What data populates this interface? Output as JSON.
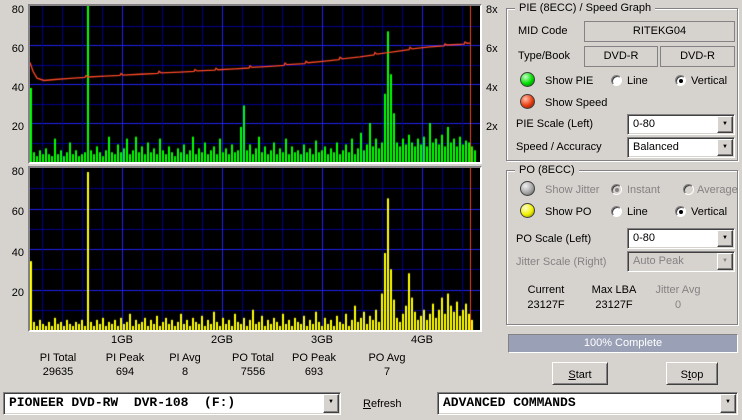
{
  "icons": {
    "dropdown_arrow": "▼"
  },
  "chart_data": [
    {
      "name": "pie_speed_graph",
      "title": "PIE (8ECC) / Speed Graph",
      "type": "bar",
      "ylim": [
        0,
        80
      ],
      "left_ticks": [
        "80",
        "60",
        "40",
        "20"
      ],
      "right_ticks": [
        "8x",
        "6x",
        "4x",
        "2x"
      ],
      "right_axis_range": [
        2,
        8
      ],
      "bar_color": "#00ff00",
      "grid": {
        "bg": "#000000",
        "minor": "#00008f",
        "major": "#2222ee"
      },
      "bars": [
        38,
        5,
        3,
        6,
        4,
        7,
        4,
        3,
        12,
        4,
        6,
        3,
        5,
        10,
        4,
        6,
        3,
        4,
        5,
        80,
        6,
        4,
        8,
        5,
        3,
        6,
        13,
        5,
        4,
        9,
        5,
        7,
        12,
        4,
        6,
        13,
        5,
        8,
        4,
        10,
        5,
        7,
        4,
        12,
        6,
        4,
        8,
        5,
        3,
        7,
        5,
        9,
        4,
        6,
        13,
        4,
        7,
        5,
        10,
        4,
        6,
        8,
        4,
        12,
        5,
        7,
        4,
        9,
        5,
        6,
        18,
        29,
        6,
        9,
        4,
        7,
        13,
        5,
        8,
        4,
        6,
        10,
        4,
        7,
        5,
        12,
        4,
        8,
        5,
        6,
        4,
        9,
        5,
        7,
        4,
        11,
        5,
        6,
        8,
        4,
        7,
        5,
        10,
        4,
        6,
        9,
        5,
        12,
        4,
        7,
        15,
        6,
        9,
        20,
        8,
        12,
        7,
        10,
        35,
        67,
        45,
        25,
        10,
        8,
        12,
        9,
        14,
        10,
        8,
        12,
        9,
        13,
        8,
        20,
        10,
        12,
        9,
        14,
        8,
        18,
        10,
        12,
        8,
        13,
        9,
        11,
        10,
        8,
        6,
        0
      ],
      "speed_line": {
        "color": "#ff4a28",
        "points": [
          [
            0,
            51
          ],
          [
            3,
            46.5
          ],
          [
            7,
            43
          ],
          [
            14,
            41.8
          ],
          [
            25,
            42.3
          ],
          [
            40,
            42.9
          ],
          [
            55,
            43.4
          ],
          [
            56,
            44.4
          ],
          [
            58,
            43.6
          ],
          [
            75,
            44
          ],
          [
            90,
            44.4
          ],
          [
            91,
            45.4
          ],
          [
            93,
            44.6
          ],
          [
            110,
            45
          ],
          [
            128,
            45.5
          ],
          [
            129,
            46.5
          ],
          [
            131,
            45.7
          ],
          [
            150,
            46.1
          ],
          [
            164,
            46.5
          ],
          [
            165,
            47.5
          ],
          [
            167,
            46.7
          ],
          [
            185,
            47.1
          ],
          [
            186,
            48.1
          ],
          [
            188,
            47.3
          ],
          [
            205,
            47.8
          ],
          [
            219,
            48.2
          ],
          [
            220,
            49.3
          ],
          [
            222,
            48.5
          ],
          [
            240,
            49
          ],
          [
            254,
            49.5
          ],
          [
            255,
            50.7
          ],
          [
            257,
            49.9
          ],
          [
            275,
            50.5
          ],
          [
            276,
            51.7
          ],
          [
            278,
            50.9
          ],
          [
            295,
            51.7
          ],
          [
            309,
            52.5
          ],
          [
            310,
            53.7
          ],
          [
            312,
            52.9
          ],
          [
            330,
            53.9
          ],
          [
            344,
            54.9
          ],
          [
            345,
            56.1
          ],
          [
            347,
            55.3
          ],
          [
            365,
            56.6
          ],
          [
            379,
            57.6
          ],
          [
            380,
            58.8
          ],
          [
            382,
            58
          ],
          [
            400,
            59
          ],
          [
            414,
            59.6
          ],
          [
            415,
            60.6
          ],
          [
            417,
            60
          ],
          [
            434,
            60.4
          ],
          [
            435,
            61.6
          ],
          [
            437,
            60.9
          ],
          [
            440,
            61
          ]
        ]
      },
      "cursor": {
        "x": 440,
        "color": "#e64a19"
      }
    },
    {
      "name": "po_graph",
      "title": "PO (8ECC)",
      "type": "bar",
      "ylim": [
        0,
        80
      ],
      "left_ticks": [
        "80",
        "60",
        "40",
        "20"
      ],
      "x_ticks": [
        "1GB",
        "2GB",
        "3GB",
        "4GB"
      ],
      "bar_color": "#ffff00",
      "grid": {
        "bg": "#000000",
        "minor": "#00008f",
        "major": "#2222ee"
      },
      "bars": [
        34,
        4,
        2,
        5,
        3,
        2,
        4,
        2,
        6,
        3,
        4,
        2,
        5,
        3,
        2,
        4,
        3,
        5,
        2,
        78,
        4,
        2,
        5,
        3,
        6,
        2,
        4,
        3,
        5,
        2,
        6,
        3,
        4,
        8,
        2,
        5,
        3,
        4,
        6,
        2,
        5,
        3,
        7,
        2,
        4,
        6,
        3,
        5,
        2,
        4,
        8,
        3,
        5,
        2,
        6,
        4,
        3,
        7,
        2,
        5,
        3,
        9,
        4,
        2,
        6,
        3,
        5,
        2,
        8,
        4,
        3,
        6,
        2,
        5,
        10,
        3,
        4,
        7,
        2,
        5,
        3,
        6,
        4,
        2,
        8,
        3,
        5,
        2,
        6,
        4,
        3,
        7,
        2,
        5,
        3,
        9,
        4,
        2,
        6,
        3,
        5,
        2,
        7,
        4,
        3,
        8,
        2,
        5,
        12,
        4,
        6,
        9,
        3,
        7,
        5,
        10,
        4,
        18,
        38,
        65,
        30,
        15,
        6,
        4,
        8,
        12,
        28,
        16,
        9,
        5,
        7,
        10,
        5,
        8,
        13,
        6,
        10,
        16,
        8,
        18,
        12,
        9,
        14,
        7,
        10,
        13,
        8,
        5,
        0,
        0
      ],
      "cursor": {
        "x": 440,
        "color": "#e64a19"
      }
    }
  ],
  "stats": {
    "items": [
      {
        "label": "PI Total",
        "value": "29635"
      },
      {
        "label": "PI Peak",
        "value": "694"
      },
      {
        "label": "PI Avg",
        "value": "8"
      },
      {
        "label": "PO Total",
        "value": "7556"
      },
      {
        "label": "PO Peak",
        "value": "693"
      },
      {
        "label": "PO Avg",
        "value": "7"
      }
    ]
  },
  "pie_group": {
    "title": "PIE (8ECC) / Speed Graph",
    "mid_code_label": "MID Code",
    "mid_code_value": "RITEKG04",
    "type_book_label": "Type/Book",
    "type_value": "DVD-R",
    "book_value": "DVD-R",
    "show_pie_label": "Show PIE",
    "line_label": "Line",
    "vertical_label": "Vertical",
    "show_speed_label": "Show Speed",
    "pie_scale_label": "PIE Scale (Left)",
    "pie_scale_value": "0-80",
    "speed_accuracy_label": "Speed / Accuracy",
    "speed_accuracy_value": "Balanced"
  },
  "po_group": {
    "title": "PO (8ECC)",
    "show_jitter_label": "Show Jitter",
    "instant_label": "Instant",
    "average_label": "Average",
    "show_po_label": "Show PO",
    "line_label": "Line",
    "vertical_label": "Vertical",
    "po_scale_label": "PO Scale (Left)",
    "po_scale_value": "0-80",
    "jitter_scale_label": "Jitter Scale (Right)",
    "jitter_scale_value": "Auto Peak",
    "current_label": "Current",
    "current_value": "23127F",
    "max_lba_label": "Max LBA",
    "max_lba_value": "23127F",
    "jitter_avg_label": "Jitter Avg",
    "jitter_avg_value": "0"
  },
  "progress": {
    "text": "100% Complete",
    "percent": 100,
    "fill_color": "#9aa1b6"
  },
  "buttons": {
    "start_mnemonic": "S",
    "start_rest": "tart",
    "stop_pre": "S",
    "stop_mnemonic": "t",
    "stop_rest": "op"
  },
  "device_bar": {
    "drive_value": "PIONEER DVD-RW  DVR-108  (F:)",
    "refresh_mnemonic": "R",
    "refresh_rest": "efresh",
    "advanced_value": "ADVANCED COMMANDS"
  }
}
